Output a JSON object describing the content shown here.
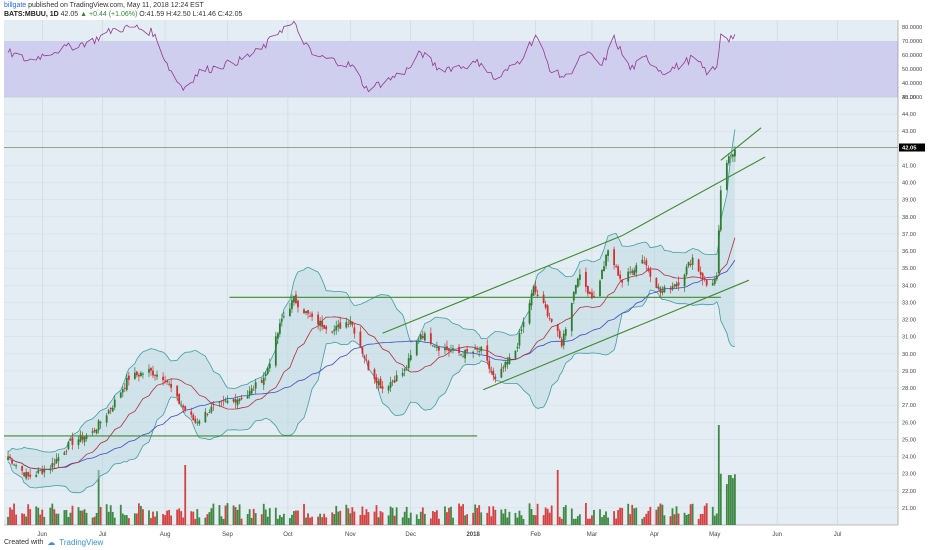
{
  "header": {
    "user": "billgate",
    "published": "published on TradingView.com, May 11, 2018 12:24 EST",
    "symbol": "BATS:MBUU, 1D",
    "last": "42.05",
    "change": "+0.44 (+1.06%)",
    "ohlc": "O:41.59 H:42.50 L:41.46 C:42.05"
  },
  "footer": {
    "created_with": "Created with",
    "brand": "TradingView"
  },
  "colors": {
    "up": "#2e7d32",
    "down": "#d32f2f",
    "rsi": "#8e3a8e",
    "rsi_band": "#c9c3ee",
    "bb": "#3d9ea0",
    "ma_red": "#b0303a",
    "ma_blue": "#3b4cc0",
    "trend": "#3f8a2f",
    "bg": "#e4edf3",
    "price_tag": "#000000"
  },
  "chart_data": {
    "type": "candlestick",
    "x_months": [
      "Jun",
      "Jul",
      "Aug",
      "Sep",
      "Oct",
      "Nov",
      "Dec",
      "2018",
      "Feb",
      "Mar",
      "Apr",
      "May",
      "Jun",
      "Jul"
    ],
    "price_axis": {
      "ylim": [
        20.0,
        45.0
      ],
      "ticks": [
        "21.00",
        "22.00",
        "23.00",
        "24.00",
        "25.00",
        "26.00",
        "27.00",
        "28.00",
        "29.00",
        "30.00",
        "31.00",
        "32.00",
        "33.00",
        "34.00",
        "35.00",
        "36.00",
        "37.00",
        "38.00",
        "39.00",
        "40.00",
        "41.00",
        "43.00",
        "44.00",
        "45.00"
      ],
      "last_price": "42.05"
    },
    "rsi_axis": {
      "ylim": [
        30,
        85
      ],
      "ticks": [
        "80.0000",
        "70.0000",
        "60.0000",
        "50.0000",
        "40.0000",
        "30.0000"
      ],
      "band": [
        30,
        70
      ]
    },
    "price_anchors": [
      [
        "2017-05-15",
        24.0
      ],
      [
        "2017-05-25",
        22.8
      ],
      [
        "2017-06-05",
        23.4
      ],
      [
        "2017-06-15",
        24.8
      ],
      [
        "2017-06-26",
        25.4
      ],
      [
        "2017-07-06",
        27.0
      ],
      [
        "2017-07-14",
        28.6
      ],
      [
        "2017-07-24",
        29.0
      ],
      [
        "2017-08-01",
        28.6
      ],
      [
        "2017-08-07",
        27.3
      ],
      [
        "2017-08-16",
        26.0
      ],
      [
        "2017-08-24",
        26.8
      ],
      [
        "2017-09-01",
        27.2
      ],
      [
        "2017-09-11",
        27.6
      ],
      [
        "2017-09-20",
        28.8
      ],
      [
        "2017-09-28",
        32.0
      ],
      [
        "2017-10-04",
        33.2
      ],
      [
        "2017-10-13",
        32.0
      ],
      [
        "2017-10-24",
        31.4
      ],
      [
        "2017-11-01",
        32.0
      ],
      [
        "2017-11-10",
        29.2
      ],
      [
        "2017-11-17",
        28.0
      ],
      [
        "2017-11-28",
        29.0
      ],
      [
        "2017-12-06",
        31.2
      ],
      [
        "2017-12-15",
        30.4
      ],
      [
        "2017-12-26",
        30.0
      ],
      [
        "2018-01-05",
        30.2
      ],
      [
        "2018-01-12",
        28.4
      ],
      [
        "2018-01-22",
        30.2
      ],
      [
        "2018-01-31",
        33.8
      ],
      [
        "2018-02-07",
        32.4
      ],
      [
        "2018-02-14",
        30.6
      ],
      [
        "2018-02-22",
        34.6
      ],
      [
        "2018-03-02",
        33.2
      ],
      [
        "2018-03-09",
        36.0
      ],
      [
        "2018-03-16",
        34.2
      ],
      [
        "2018-03-26",
        35.6
      ],
      [
        "2018-04-04",
        33.6
      ],
      [
        "2018-04-13",
        34.2
      ],
      [
        "2018-04-20",
        35.6
      ],
      [
        "2018-04-27",
        34.0
      ],
      [
        "2018-05-02",
        34.4
      ],
      [
        "2018-05-04",
        39.6
      ],
      [
        "2018-05-08",
        41.4
      ],
      [
        "2018-05-11",
        42.05
      ]
    ],
    "rsi_anchors": [
      [
        "2017-05-15",
        62
      ],
      [
        "2017-05-25",
        56
      ],
      [
        "2017-06-05",
        62
      ],
      [
        "2017-06-15",
        66
      ],
      [
        "2017-06-26",
        70
      ],
      [
        "2017-07-06",
        78
      ],
      [
        "2017-07-17",
        80
      ],
      [
        "2017-07-26",
        76
      ],
      [
        "2017-08-04",
        48
      ],
      [
        "2017-08-10",
        36
      ],
      [
        "2017-08-18",
        48
      ],
      [
        "2017-08-28",
        52
      ],
      [
        "2017-09-07",
        56
      ],
      [
        "2017-09-18",
        64
      ],
      [
        "2017-09-27",
        78
      ],
      [
        "2017-10-04",
        82
      ],
      [
        "2017-10-13",
        60
      ],
      [
        "2017-10-24",
        56
      ],
      [
        "2017-11-02",
        52
      ],
      [
        "2017-11-09",
        36
      ],
      [
        "2017-11-17",
        40
      ],
      [
        "2017-11-30",
        50
      ],
      [
        "2017-12-06",
        62
      ],
      [
        "2017-12-15",
        50
      ],
      [
        "2017-12-27",
        52
      ],
      [
        "2018-01-05",
        55
      ],
      [
        "2018-01-12",
        42
      ],
      [
        "2018-01-24",
        56
      ],
      [
        "2018-02-01",
        74
      ],
      [
        "2018-02-09",
        48
      ],
      [
        "2018-02-16",
        44
      ],
      [
        "2018-02-26",
        62
      ],
      [
        "2018-03-06",
        52
      ],
      [
        "2018-03-12",
        72
      ],
      [
        "2018-03-20",
        50
      ],
      [
        "2018-03-28",
        58
      ],
      [
        "2018-04-05",
        48
      ],
      [
        "2018-04-13",
        52
      ],
      [
        "2018-04-20",
        58
      ],
      [
        "2018-04-27",
        48
      ],
      [
        "2018-05-02",
        50
      ],
      [
        "2018-05-04",
        76
      ],
      [
        "2018-05-08",
        72
      ],
      [
        "2018-05-11",
        74
      ]
    ],
    "volume_spikes": [
      [
        "2017-06-29",
        0.55
      ],
      [
        "2017-08-11",
        0.6
      ],
      [
        "2018-02-12",
        0.55
      ],
      [
        "2018-05-03",
        1.0
      ]
    ],
    "lines": [
      {
        "name": "resistance-level-33",
        "from": [
          "2017-09-02",
          33.3
        ],
        "to": [
          "2018-05-04",
          33.3
        ]
      },
      {
        "name": "support-level-25",
        "from": [
          "2017-05-13",
          25.2
        ],
        "to": [
          "2018-01-03",
          25.2
        ]
      },
      {
        "name": "last-price-line",
        "from": [
          "2017-05-13",
          42.05
        ],
        "to": [
          "2018-07-31",
          42.05
        ]
      },
      {
        "name": "channel-top-1",
        "from": [
          "2017-11-17",
          31.2
        ],
        "to": [
          "2018-03-16",
          36.9
        ]
      },
      {
        "name": "channel-bottom-1",
        "from": [
          "2018-01-06",
          27.9
        ],
        "to": [
          "2018-05-18",
          34.3
        ]
      },
      {
        "name": "channel-top-2",
        "from": [
          "2018-03-16",
          36.9
        ],
        "to": [
          "2018-05-26",
          41.5
        ]
      },
      {
        "name": "channel-top-3",
        "from": [
          "2018-05-04",
          41.3
        ],
        "to": [
          "2018-05-24",
          43.2
        ]
      }
    ]
  }
}
